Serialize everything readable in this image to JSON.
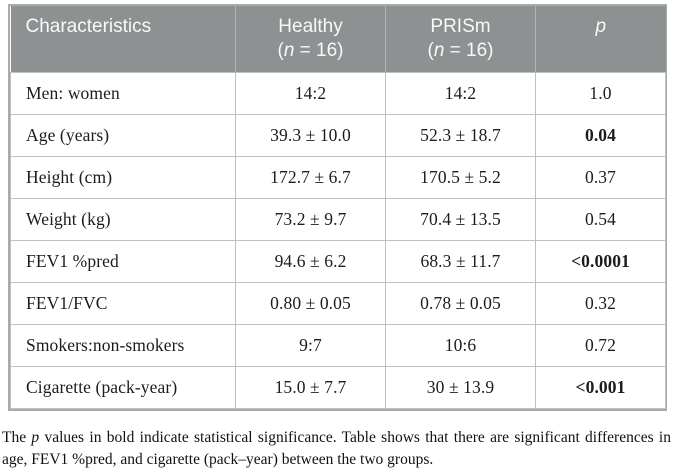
{
  "colors": {
    "header_bg": "#8d9192",
    "header_text": "#f8f9f9",
    "header_divider": "#b1b5b6",
    "grid_line": "#bfc1c1",
    "outer_border": "#a6abac",
    "body_text": "#1c1c1c"
  },
  "table": {
    "header": {
      "col1": "Characteristics",
      "col2": {
        "line1": "Healthy",
        "paren": "(",
        "n": "n",
        "rest": " = 16)"
      },
      "col3": {
        "line1": "PRISm",
        "paren": "(",
        "n": "n",
        "rest": " = 16)"
      },
      "col4": "p"
    },
    "rows": [
      {
        "label": "Men: women",
        "healthy": "14:2",
        "prism": "14:2",
        "p": "1.0",
        "p_bold": false
      },
      {
        "label": "Age (years)",
        "healthy": "39.3 ± 10.0",
        "prism": "52.3 ± 18.7",
        "p": "0.04",
        "p_bold": true
      },
      {
        "label": "Height (cm)",
        "healthy": "172.7 ± 6.7",
        "prism": "170.5 ± 5.2",
        "p": "0.37",
        "p_bold": false
      },
      {
        "label": "Weight (kg)",
        "healthy": "73.2 ± 9.7",
        "prism": "70.4 ± 13.5",
        "p": "0.54",
        "p_bold": false
      },
      {
        "label": "FEV1 %pred",
        "healthy": "94.6 ± 6.2",
        "prism": "68.3 ± 11.7",
        "p": "<0.0001",
        "p_bold": true
      },
      {
        "label": "FEV1/FVC",
        "healthy": "0.80 ± 0.05",
        "prism": "0.78 ± 0.05",
        "p": "0.32",
        "p_bold": false
      },
      {
        "label": "Smokers:non-smokers",
        "healthy": "9:7",
        "prism": "10:6",
        "p": "0.72",
        "p_bold": false
      },
      {
        "label": "Cigarette (pack-year)",
        "healthy": "15.0 ± 7.7",
        "prism": "30 ± 13.9",
        "p": "<0.001",
        "p_bold": true
      }
    ]
  },
  "footnote": {
    "pre": "The ",
    "italic_p": "p",
    "post": " values in bold indicate statistical significance. Table shows that there are significant differences in age, FEV1 %pred, and cigarette (pack–year) between the two groups."
  }
}
